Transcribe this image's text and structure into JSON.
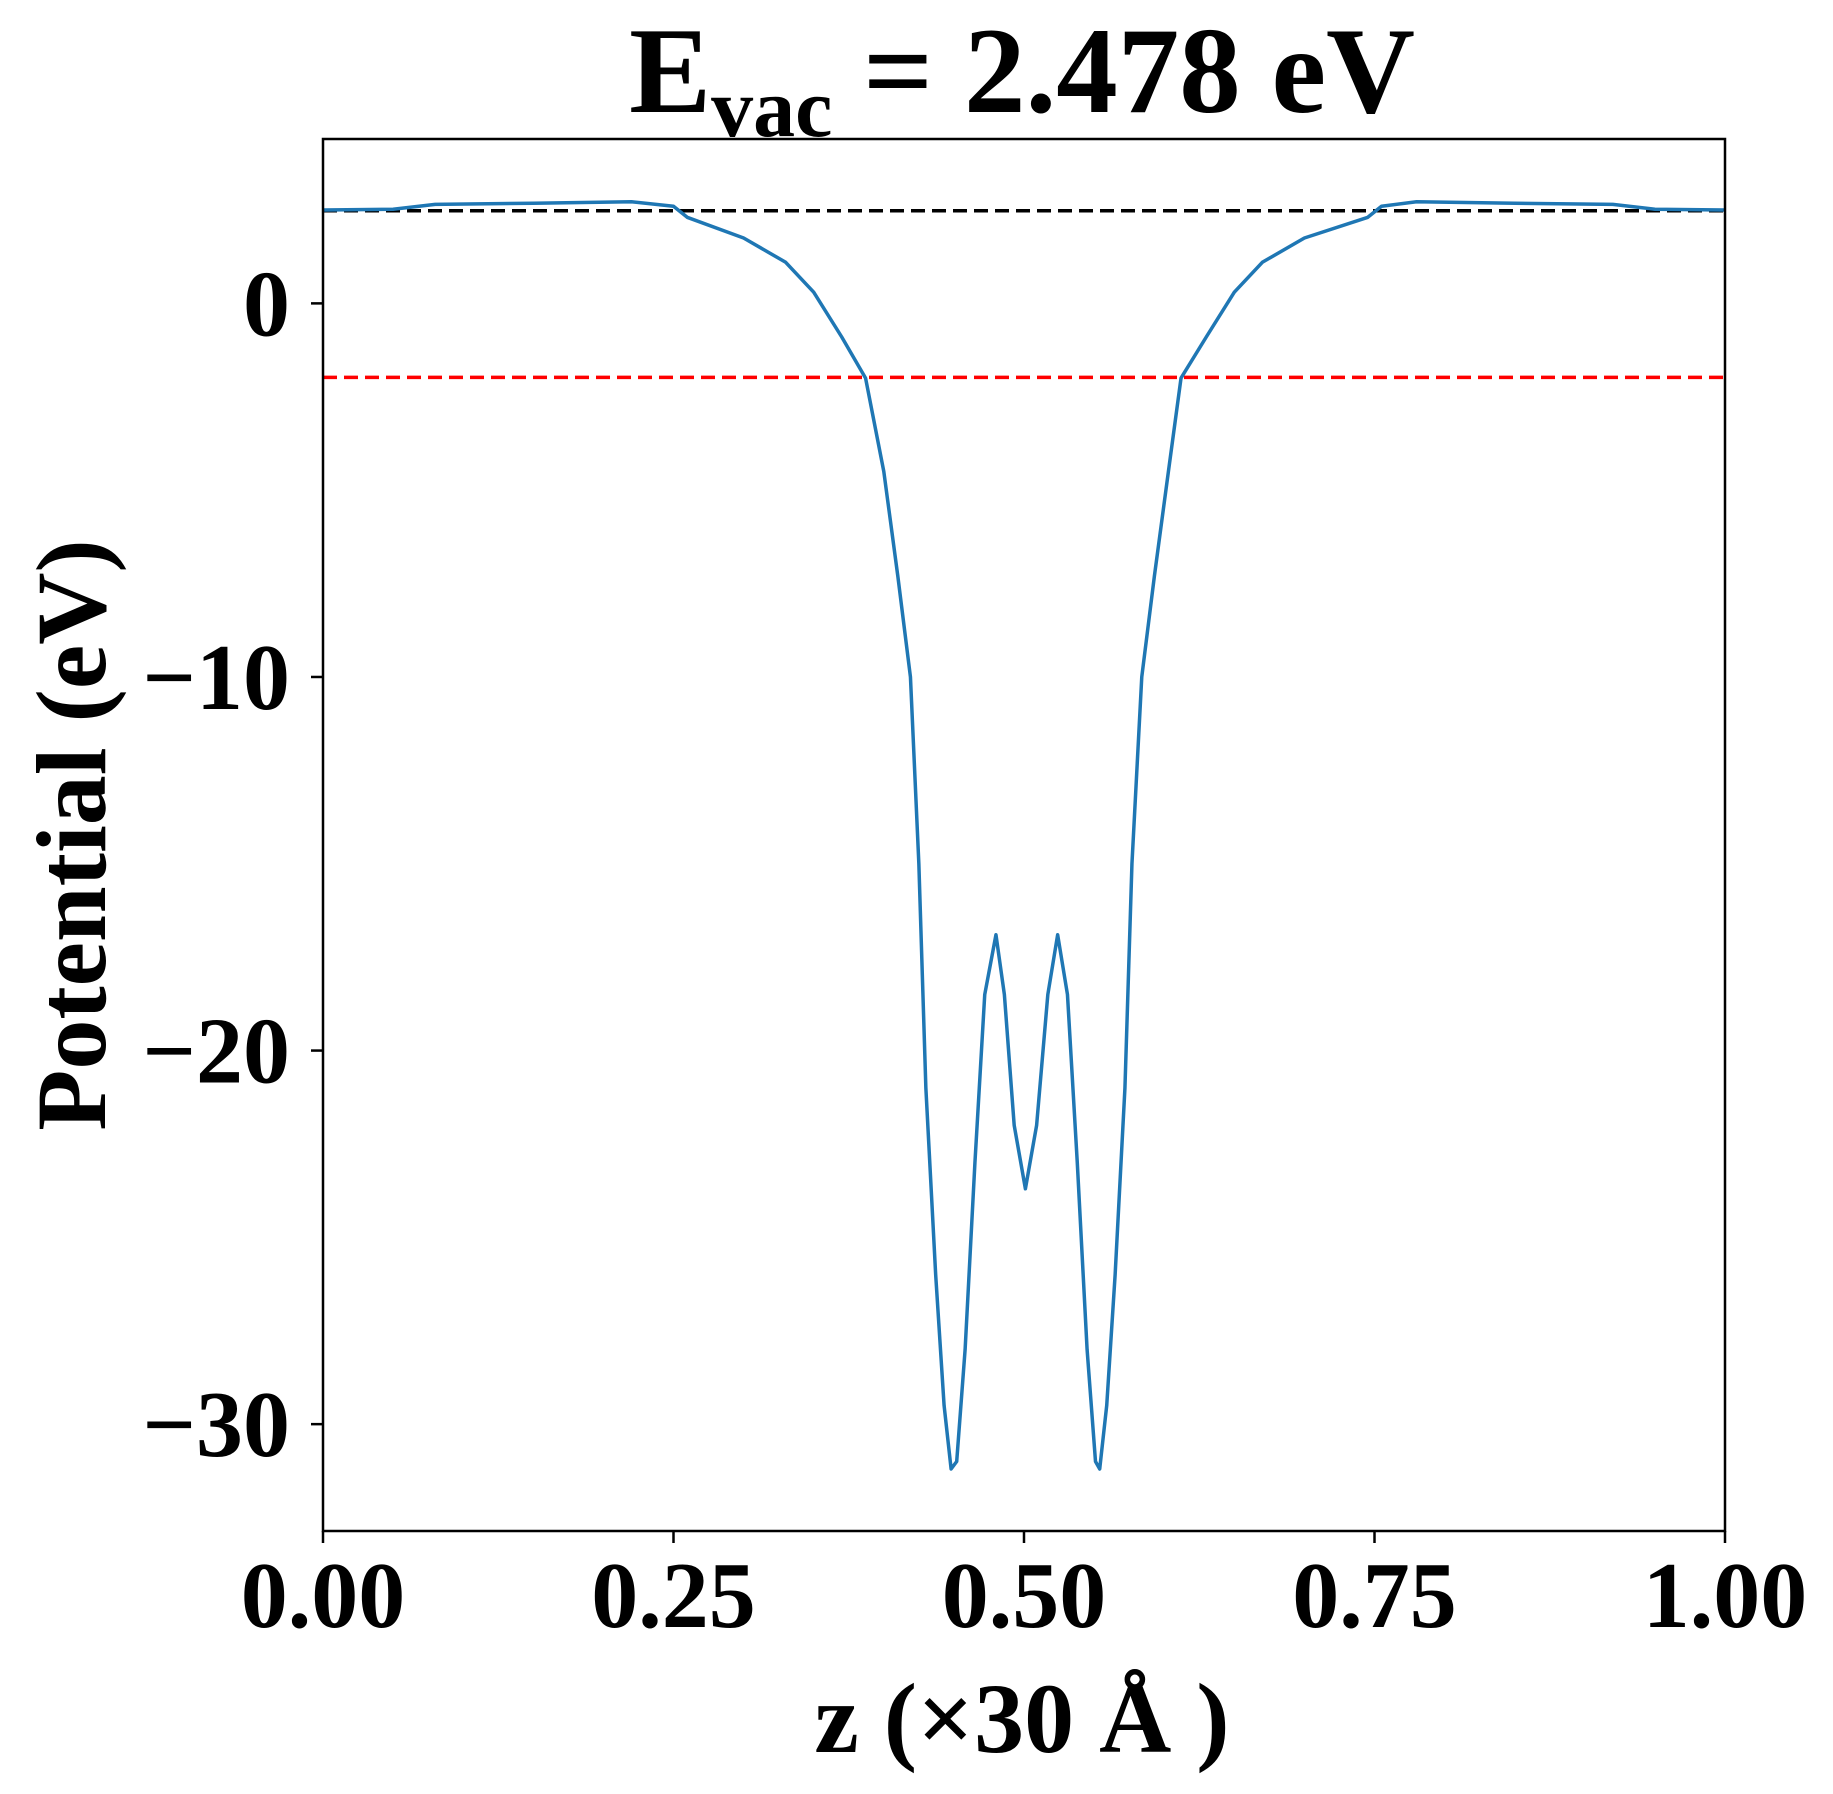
{
  "chart_data": {
    "type": "line",
    "title": {
      "base": "E",
      "subscript": "vac",
      "text": " = 2.478 eV"
    },
    "x_label": "z (×30 Å )",
    "y_label": "Potential (eV)",
    "xlim": [
      0,
      1
    ],
    "ylim": [
      -32.86,
      4.4
    ],
    "xticks": [
      {
        "value": 0,
        "label": "0.00"
      },
      {
        "value": 0.25,
        "label": "0.25"
      },
      {
        "value": 0.5,
        "label": "0.50"
      },
      {
        "value": 0.75,
        "label": "0.75"
      },
      {
        "value": 1,
        "label": "1.00"
      }
    ],
    "yticks": [
      0,
      {
        "value": -10,
        "label": "−10"
      },
      {
        "value": -20,
        "label": "−20"
      },
      {
        "value": -30,
        "label": "−30"
      }
    ],
    "hlines": [
      {
        "y": 2.478,
        "color": "#000000"
      },
      {
        "y": -1.98,
        "color": "#ff0000"
      }
    ],
    "series": [
      {
        "color": "#1f77b4",
        "x": [
          0,
          0.05,
          0.08,
          0.15,
          0.22,
          0.25,
          0.26,
          0.3,
          0.33,
          0.35,
          0.37,
          0.387,
          0.4,
          0.41,
          0.419,
          0.425,
          0.43,
          0.437,
          0.443,
          0.448,
          0.452,
          0.458,
          0.465,
          0.472,
          0.48,
          0.486,
          0.493,
          0.501,
          0.509,
          0.517,
          0.524,
          0.531,
          0.538,
          0.545,
          0.551,
          0.554,
          0.559,
          0.565,
          0.572,
          0.577,
          0.584,
          0.593,
          0.603,
          0.612,
          0.63,
          0.65,
          0.67,
          0.7,
          0.745,
          0.755,
          0.78,
          0.85,
          0.92,
          0.95,
          1.0
        ],
        "values": [
          2.5,
          2.52,
          2.65,
          2.68,
          2.72,
          2.6,
          2.3,
          1.75,
          1.1,
          0.3,
          -0.9,
          -2.0,
          -4.5,
          -7.3,
          -10,
          -15,
          -21,
          -26,
          -29.5,
          -31.2,
          -31.0,
          -28,
          -23,
          -18.5,
          -16.9,
          -18.5,
          -22,
          -23.7,
          -22,
          -18.5,
          -16.9,
          -18.5,
          -23,
          -28,
          -31.0,
          -31.2,
          -29.5,
          -26,
          -21,
          -15,
          -10,
          -7.3,
          -4.5,
          -2.0,
          -0.9,
          0.3,
          1.1,
          1.75,
          2.3,
          2.6,
          2.72,
          2.68,
          2.65,
          2.52,
          2.5
        ]
      }
    ]
  }
}
